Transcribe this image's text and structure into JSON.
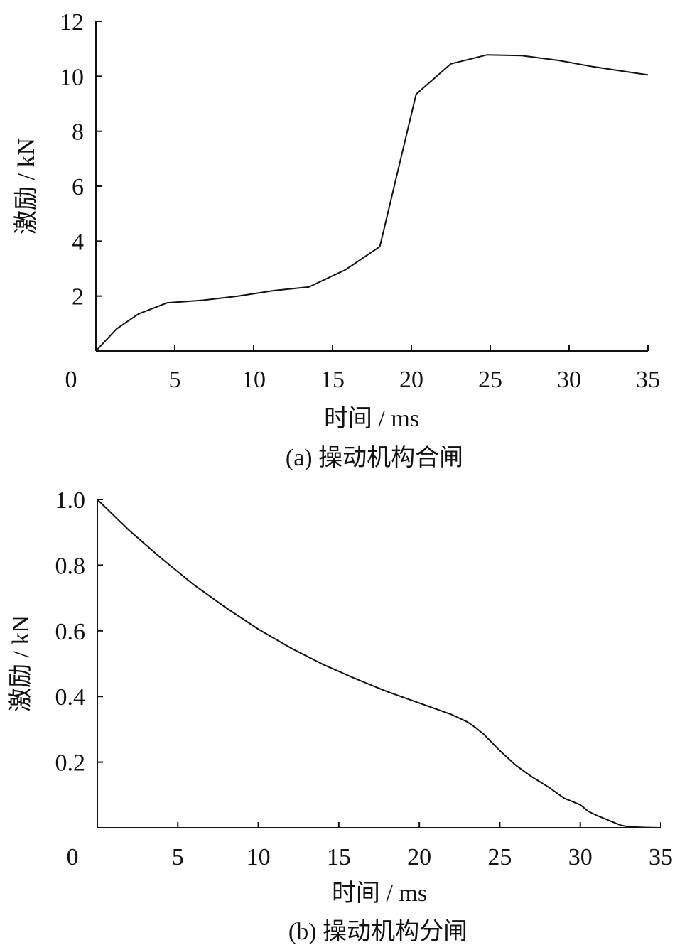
{
  "chart_data": [
    {
      "type": "line",
      "caption": "(a) 操动机构合闸",
      "xlabel": "时间 / ms",
      "ylabel": "激励 / kN",
      "xlim": [
        0,
        35
      ],
      "ylim": [
        0,
        12
      ],
      "xticks": [
        "0",
        "5",
        "10",
        "15",
        "20",
        "25",
        "30",
        "35"
      ],
      "xtick_values": [
        0,
        5,
        10,
        15,
        20,
        25,
        30,
        35
      ],
      "yticks": [
        "2",
        "4",
        "6",
        "8",
        "10",
        "12"
      ],
      "ytick_values": [
        2,
        4,
        6,
        8,
        10,
        12
      ],
      "grid": false,
      "series": [
        {
          "x": [
            0,
            1.3,
            2.7,
            3.6,
            4.5,
            6.8,
            9.0,
            11.3,
            13.5,
            15.8,
            18.0,
            20.3,
            22.5,
            24.8,
            27.0,
            29.3,
            31.5,
            33.8,
            35.0
          ],
          "y": [
            0,
            0.8,
            1.35,
            1.55,
            1.75,
            1.85,
            2.0,
            2.2,
            2.33,
            2.95,
            3.8,
            9.35,
            10.45,
            10.78,
            10.75,
            10.58,
            10.35,
            10.15,
            10.05
          ]
        }
      ]
    },
    {
      "type": "line",
      "caption": "(b) 操动机构分闸",
      "xlabel": "时间 / ms",
      "ylabel": "激励 / kN",
      "xlim": [
        0,
        35
      ],
      "ylim": [
        0,
        1.0
      ],
      "xticks": [
        "0",
        "5",
        "10",
        "15",
        "20",
        "25",
        "30",
        "35"
      ],
      "xtick_values": [
        0,
        5,
        10,
        15,
        20,
        25,
        30,
        35
      ],
      "yticks": [
        "0.2",
        "0.4",
        "0.6",
        "0.8",
        "1.0"
      ],
      "ytick_values": [
        0.2,
        0.4,
        0.6,
        0.8,
        1.0
      ],
      "grid": false,
      "series": [
        {
          "x": [
            0,
            2,
            4,
            6,
            8,
            10,
            12,
            14,
            16,
            18,
            20,
            22,
            23,
            23.5,
            24,
            25,
            26,
            27,
            28,
            29,
            30,
            30.5,
            31,
            32,
            32.5,
            33,
            34,
            35
          ],
          "y": [
            1.0,
            0.905,
            0.82,
            0.74,
            0.67,
            0.605,
            0.548,
            0.498,
            0.455,
            0.415,
            0.38,
            0.345,
            0.322,
            0.305,
            0.285,
            0.235,
            0.19,
            0.155,
            0.125,
            0.09,
            0.07,
            0.05,
            0.038,
            0.018,
            0.008,
            0.003,
            0.001,
            0.0
          ]
        }
      ]
    }
  ]
}
